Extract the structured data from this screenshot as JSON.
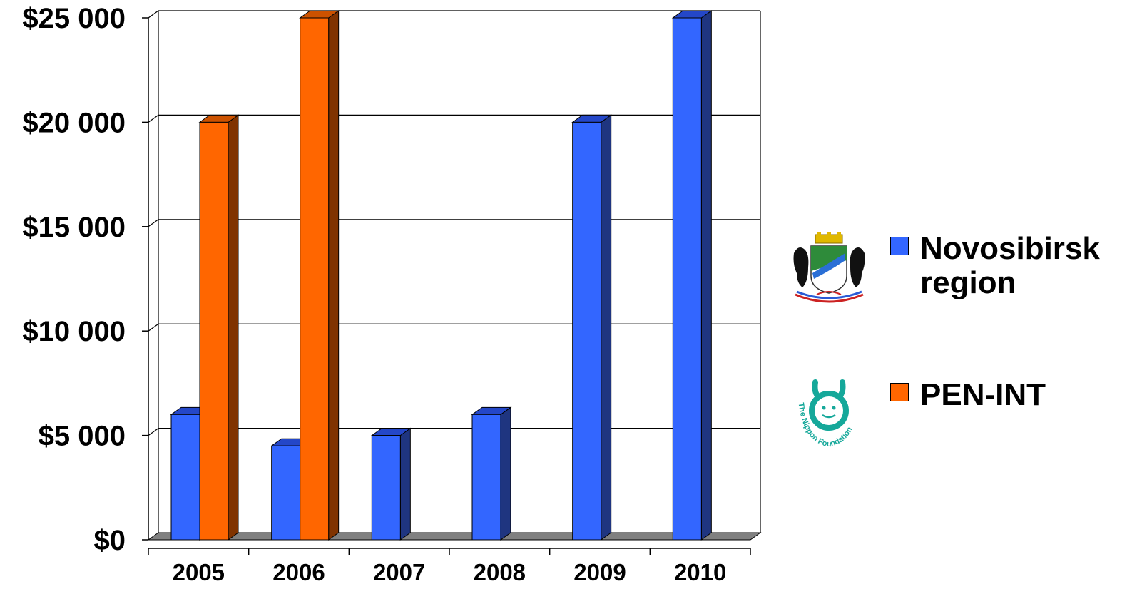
{
  "chart_data": {
    "type": "bar",
    "categories": [
      "2005",
      "2006",
      "2007",
      "2008",
      "2009",
      "2010"
    ],
    "series": [
      {
        "name": "Novosibirsk region",
        "color": "#3366FF",
        "side_color": "#1F3580",
        "top_color": "#2447C8",
        "values": [
          6000,
          4500,
          5000,
          6000,
          20000,
          25000
        ]
      },
      {
        "name": "PEN-INT",
        "color": "#FF6600",
        "side_color": "#803300",
        "top_color": "#CC5200",
        "values": [
          20000,
          25000,
          null,
          null,
          null,
          null
        ]
      }
    ],
    "ylim": [
      0,
      25000
    ],
    "yticks": [
      0,
      5000,
      10000,
      15000,
      20000,
      25000
    ],
    "ytick_labels": [
      "$0",
      "$5 000",
      "$10 000",
      "$15 000",
      "$20 000",
      "$25 000"
    ],
    "grid": true,
    "legend_position": "right",
    "title": "",
    "xlabel": "",
    "ylabel": ""
  },
  "legend": {
    "items": [
      {
        "line1": "Novosibirsk",
        "line2": "region",
        "logo": "novosibirsk-coat-of-arms-icon"
      },
      {
        "line1": "PEN-INT",
        "line2": "",
        "logo": "nippon-foundation-logo",
        "logo_text": "The Nippon Foundation"
      }
    ]
  }
}
